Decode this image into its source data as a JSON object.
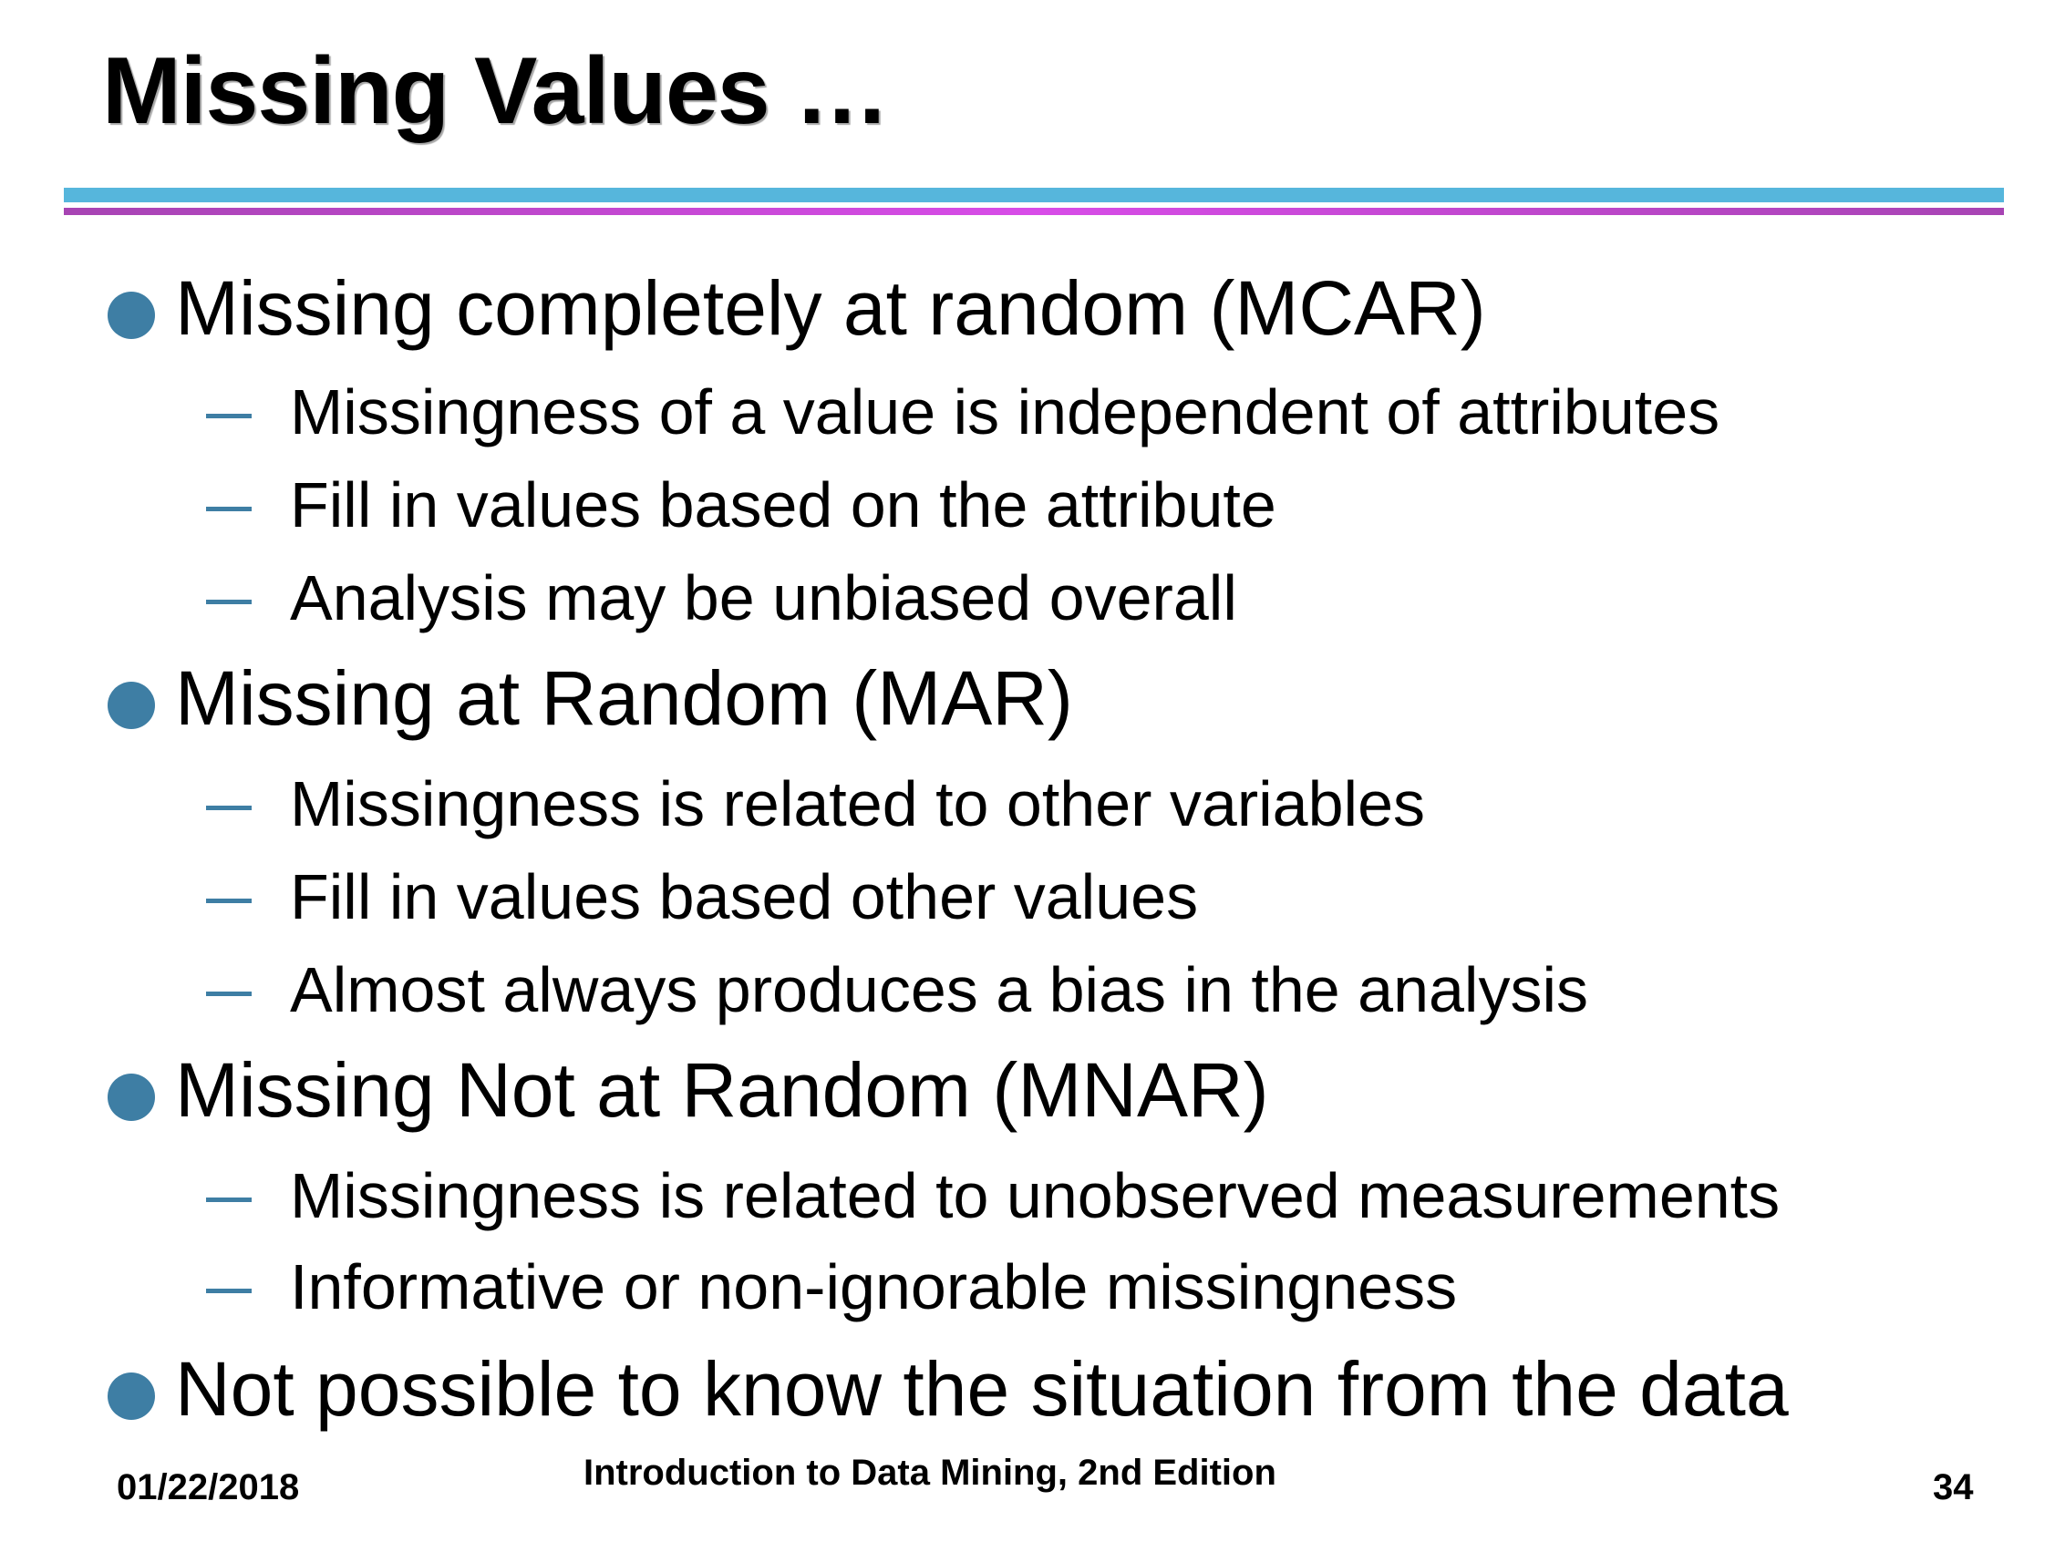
{
  "slide": {
    "title": "Missing Values …"
  },
  "bullets": [
    {
      "text": "Missing completely at random (MCAR)",
      "sub": [
        "Missingness of a value is independent of attributes",
        "Fill in values based on the attribute",
        "Analysis may be unbiased overall"
      ]
    },
    {
      "text": "Missing at Random (MAR)",
      "sub": [
        "Missingness is related to other variables",
        "Fill in values based other values",
        "Almost always produces a bias in the analysis"
      ]
    },
    {
      "text": "Missing Not at Random (MNAR)",
      "sub": [
        "Missingness is related to unobserved measurements",
        "Informative or non-ignorable missingness"
      ]
    },
    {
      "text": "Not possible to know the situation from the data",
      "sub": []
    }
  ],
  "footer": {
    "date": "01/22/2018",
    "book": "Introduction to Data Mining, 2nd Edition",
    "page": "34"
  },
  "colors": {
    "bullet": "#3e7ea4",
    "rule_top": "#56b6dc",
    "rule_bottom": "#d84ce8"
  }
}
